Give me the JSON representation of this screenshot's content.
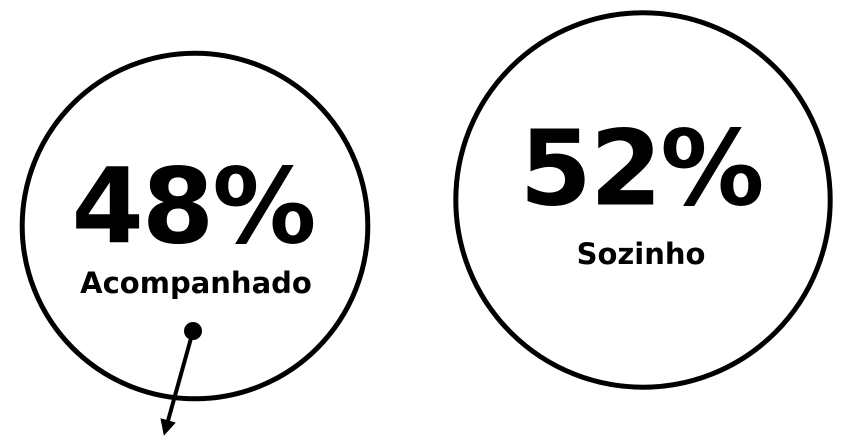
{
  "chart_data": {
    "type": "bubble",
    "categories": [
      "Acompanhado",
      "Sozinho"
    ],
    "values": [
      48,
      52
    ],
    "value_labels": [
      "48%",
      "52%"
    ],
    "color": "#000000"
  }
}
